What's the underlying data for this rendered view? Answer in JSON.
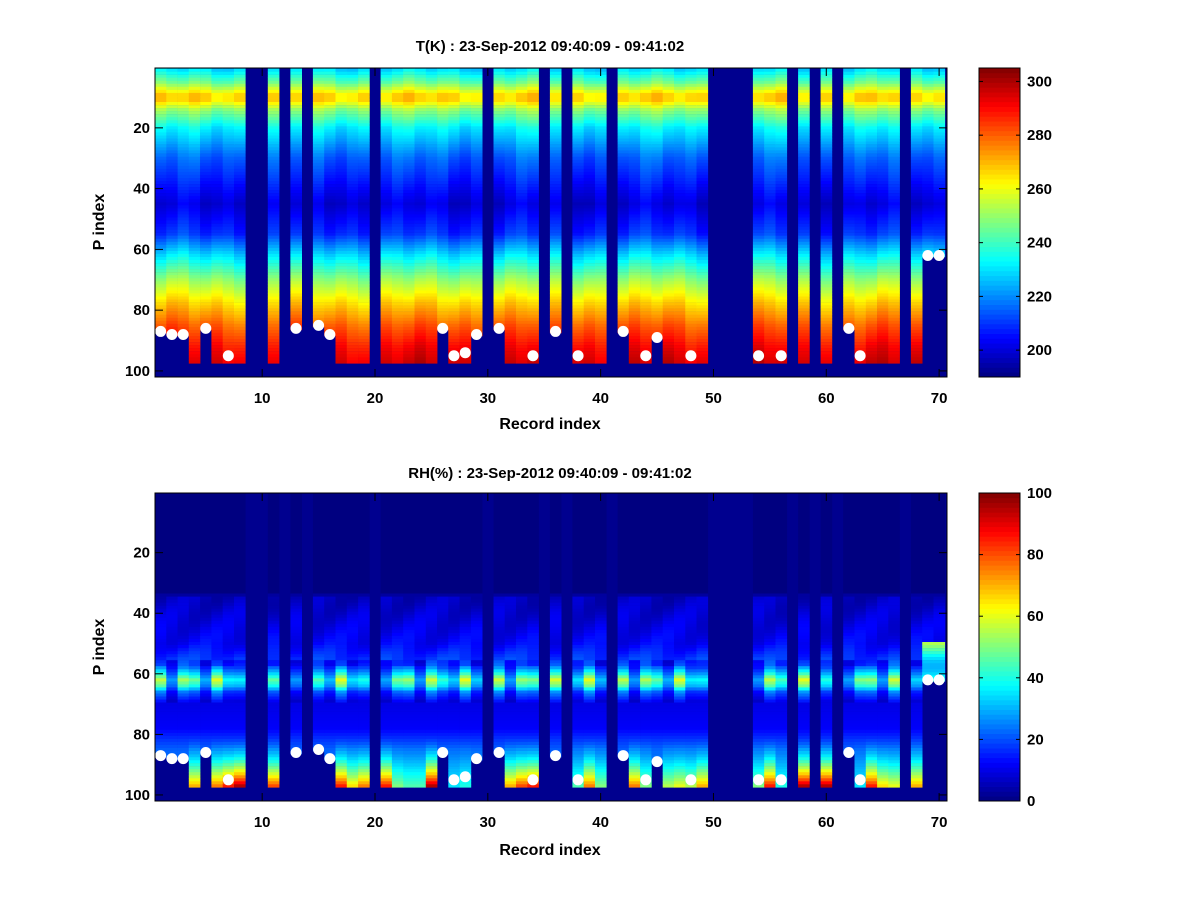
{
  "chart_data": [
    {
      "type": "heatmap",
      "title": "T(K) : 23-Sep-2012 09:40:09 - 09:41:02",
      "xlabel": "Record index",
      "ylabel": "P index",
      "xlim": [
        0.5,
        70.7
      ],
      "ylim": [
        0.3,
        102
      ],
      "xticks": [
        10,
        20,
        30,
        40,
        50,
        60,
        70
      ],
      "yticks": [
        20,
        40,
        60,
        80,
        100
      ],
      "colorbar": {
        "range": [
          190,
          305
        ],
        "ticks": [
          200,
          220,
          240,
          260,
          280,
          300
        ],
        "colormap": "jet"
      },
      "profile_knots": [
        [
          1,
          230
        ],
        [
          5,
          245
        ],
        [
          9,
          266
        ],
        [
          11,
          266
        ],
        [
          14,
          250
        ],
        [
          20,
          232
        ],
        [
          30,
          215
        ],
        [
          45,
          200
        ],
        [
          55,
          210
        ],
        [
          62,
          230
        ],
        [
          70,
          250
        ],
        [
          77,
          265
        ],
        [
          85,
          280
        ],
        [
          92,
          290
        ],
        [
          97,
          295
        ]
      ],
      "variable": "T"
    },
    {
      "type": "heatmap",
      "title": "RH(%) : 23-Sep-2012 09:40:09 - 09:41:02",
      "xlabel": "Record index",
      "ylabel": "P index",
      "xlim": [
        0.5,
        70.7
      ],
      "ylim": [
        0.3,
        102
      ],
      "xticks": [
        10,
        20,
        30,
        40,
        50,
        60,
        70
      ],
      "yticks": [
        20,
        40,
        60,
        80,
        100
      ],
      "colorbar": {
        "range": [
          0,
          100
        ],
        "ticks": [
          0,
          20,
          40,
          60,
          80,
          100
        ],
        "colormap": "jet"
      },
      "profile_knots": [
        [
          1,
          0
        ],
        [
          33,
          0
        ],
        [
          35,
          6
        ],
        [
          50,
          12
        ],
        [
          57,
          20
        ],
        [
          60,
          40
        ],
        [
          62,
          55
        ],
        [
          64,
          45
        ],
        [
          66,
          25
        ],
        [
          70,
          10
        ],
        [
          78,
          12
        ],
        [
          85,
          22
        ],
        [
          97,
          30
        ]
      ],
      "variable": "RH"
    }
  ],
  "records": {
    "count": 70,
    "levels": 97,
    "missing": [
      9,
      10,
      12,
      14,
      20,
      30,
      35,
      37,
      41,
      50,
      51,
      52,
      53,
      57,
      59,
      61,
      67
    ],
    "markers": [
      [
        1,
        87
      ],
      [
        2,
        88
      ],
      [
        3,
        88
      ],
      [
        5,
        86
      ],
      [
        7,
        95
      ],
      [
        13,
        86
      ],
      [
        15,
        85
      ],
      [
        16,
        88
      ],
      [
        26,
        86
      ],
      [
        27,
        95
      ],
      [
        28,
        94
      ],
      [
        29,
        88
      ],
      [
        31,
        86
      ],
      [
        34,
        95
      ],
      [
        36,
        87
      ],
      [
        38,
        95
      ],
      [
        42,
        87
      ],
      [
        44,
        95
      ],
      [
        45,
        89
      ],
      [
        48,
        95
      ],
      [
        54,
        95
      ],
      [
        56,
        95
      ],
      [
        62,
        86
      ],
      [
        63,
        95
      ],
      [
        69,
        62
      ],
      [
        70,
        62
      ]
    ],
    "rh_bottom": {
      "1": 20,
      "2": 20,
      "3": 20,
      "4": 70,
      "5": 20,
      "6": 75,
      "7": 85,
      "8": 95,
      "11": 80,
      "13": 15,
      "15": 20,
      "16": 20,
      "17": 85,
      "18": 65,
      "19": 75,
      "21": 85,
      "22": 50,
      "23": 45,
      "24": 45,
      "25": 95,
      "26": 30,
      "27": 35,
      "28": 40,
      "29": 30,
      "31": 20,
      "32": 70,
      "33": 80,
      "34": 85,
      "36": 15,
      "38": 45,
      "39": 75,
      "40": 50,
      "42": 15,
      "43": 75,
      "44": 50,
      "45": 25,
      "46": 55,
      "47": 60,
      "48": 55,
      "49": 70,
      "54": 50,
      "55": 85,
      "56": 40,
      "58": 95,
      "60": 95,
      "62": 20,
      "63": 35,
      "64": 85,
      "65": 65,
      "66": 60,
      "68": 70,
      "69": 50,
      "70": 50
    }
  },
  "colors": {
    "missing": "#00008f",
    "marker": "#ffffff"
  }
}
